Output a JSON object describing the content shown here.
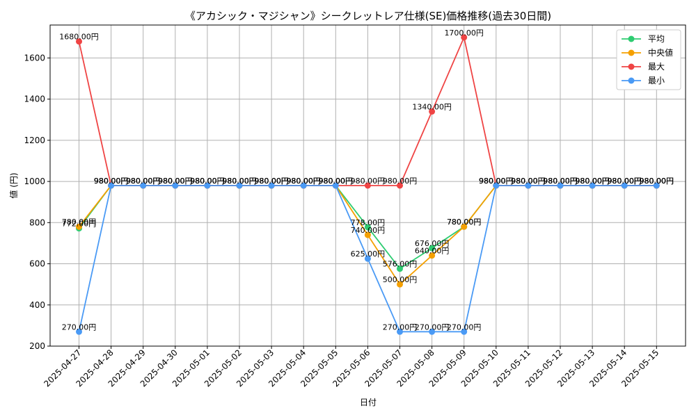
{
  "chart_data": {
    "type": "line",
    "title": "《アカシック・マジシャン》シークレットレア仕様(SE)価格推移(過去30日間)",
    "xlabel": "日付",
    "ylabel": "値 (円)",
    "ylim": [
      200,
      1760
    ],
    "yticks": [
      200,
      400,
      600,
      800,
      1000,
      1200,
      1400,
      1600
    ],
    "grid": true,
    "legend_position": "top-right",
    "label_suffix": "円",
    "categories": [
      "2025-04-27",
      "2025-04-28",
      "2025-04-29",
      "2025-04-30",
      "2025-05-01",
      "2025-05-02",
      "2025-05-03",
      "2025-05-04",
      "2025-05-05",
      "2025-05-06",
      "2025-05-07",
      "2025-05-08",
      "2025-05-09",
      "2025-05-10",
      "2025-05-11",
      "2025-05-12",
      "2025-05-13",
      "2025-05-14",
      "2025-05-15"
    ],
    "series": [
      {
        "name": "平均",
        "color": "#2ecc71",
        "values": [
          772,
          980,
          980,
          980,
          980,
          980,
          980,
          980,
          980,
          778,
          576,
          676,
          780,
          980,
          980,
          980,
          980,
          980,
          980
        ]
      },
      {
        "name": "中央値",
        "color": "#f5a000",
        "values": [
          780,
          980,
          980,
          980,
          980,
          980,
          980,
          980,
          980,
          740,
          500,
          640,
          780,
          980,
          980,
          980,
          980,
          980,
          980
        ]
      },
      {
        "name": "最大",
        "color": "#ef4444",
        "values": [
          1680,
          980,
          980,
          980,
          980,
          980,
          980,
          980,
          980,
          980,
          980,
          1340,
          1700,
          980,
          980,
          980,
          980,
          980,
          980
        ]
      },
      {
        "name": "最小",
        "color": "#4a9af5",
        "values": [
          270,
          980,
          980,
          980,
          980,
          980,
          980,
          980,
          980,
          625,
          270,
          270,
          270,
          980,
          980,
          980,
          980,
          980,
          980
        ]
      }
    ]
  }
}
